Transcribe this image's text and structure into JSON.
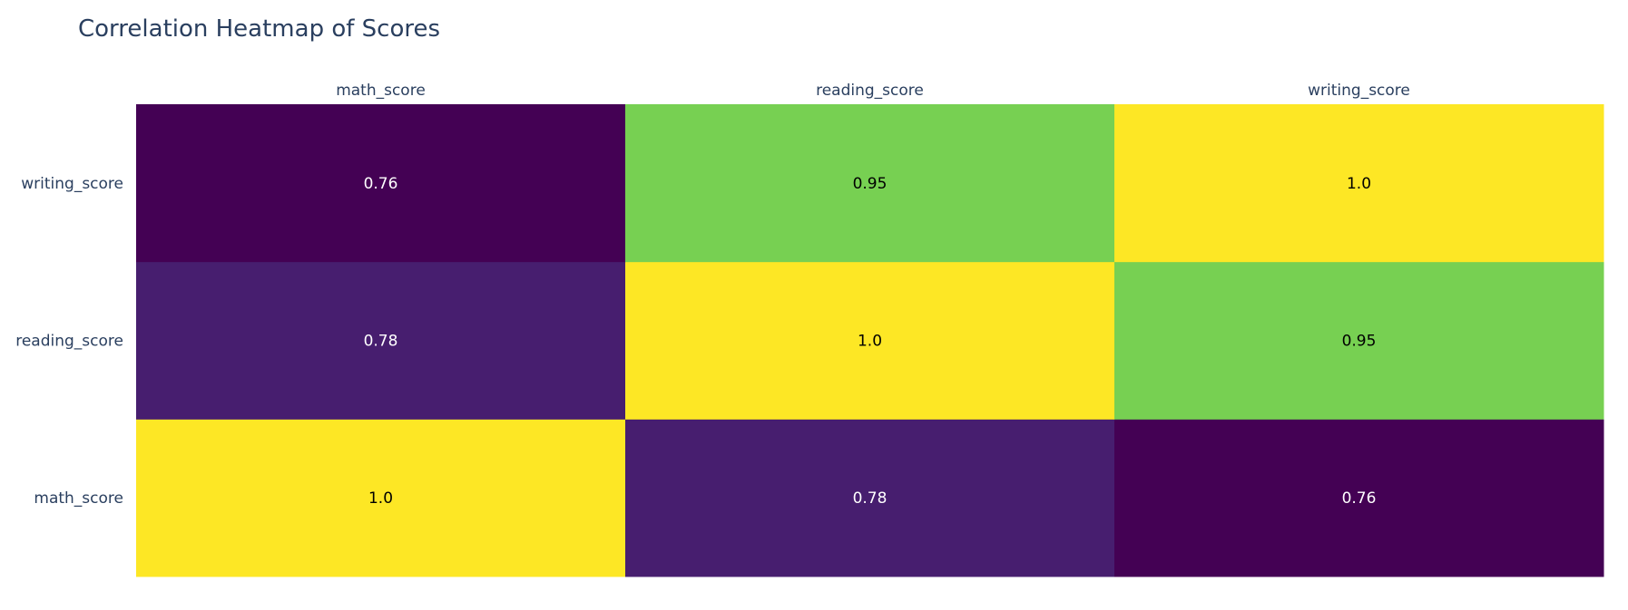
{
  "chart_data": {
    "type": "heatmap",
    "title": "Correlation Heatmap of Scores",
    "x_categories": [
      "math_score",
      "reading_score",
      "writing_score"
    ],
    "y_categories": [
      "math_score",
      "reading_score",
      "writing_score"
    ],
    "x_axis_side": "top",
    "y_order": "bottom-to-top",
    "z": [
      [
        1.0,
        0.78,
        0.76
      ],
      [
        0.78,
        1.0,
        0.95
      ],
      [
        0.76,
        0.95,
        1.0
      ]
    ],
    "z_labels": [
      [
        "1.0",
        "0.78",
        "0.76"
      ],
      [
        "0.78",
        "1.0",
        "0.95"
      ],
      [
        "0.76",
        "0.95",
        "1.0"
      ]
    ],
    "zrange": [
      0.76,
      1.0
    ],
    "colorscale": "Viridis",
    "grid": false,
    "colors": {
      "text": "#2a3f5f",
      "low": "#440154",
      "high": "#fde725"
    }
  }
}
